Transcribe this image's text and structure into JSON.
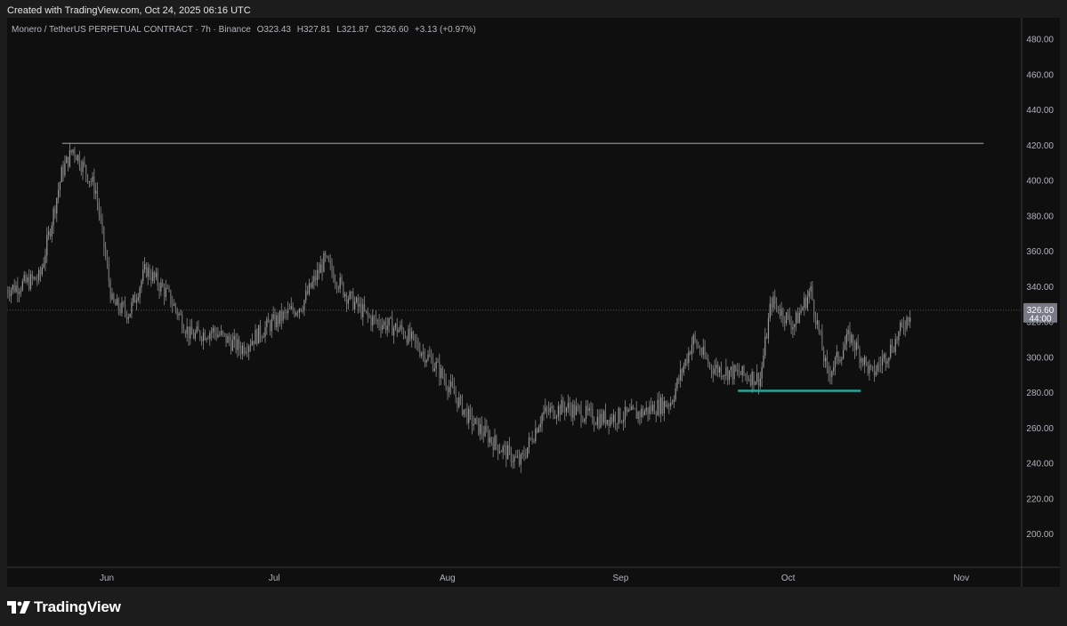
{
  "header": {
    "created_text": "Created with TradingView.com, Oct 24, 2025 06:16 UTC"
  },
  "legend": {
    "symbol": "Monero / TetherUS PERPETUAL CONTRACT · 7h · Binance",
    "open": "O323.43",
    "high": "H327.81",
    "low": "L321.87",
    "close": "C326.60",
    "change": "+3.13 (+0.97%)"
  },
  "price_label": {
    "price": "326.60",
    "countdown": "44:00"
  },
  "footer": {
    "brand": "TradingView"
  },
  "colors": {
    "candle": "#8c8c8c",
    "resistance_line": "#8a8a8a",
    "support_line": "#26a69a",
    "price_label_bg": "#787b86"
  },
  "chart_data": {
    "type": "candlestick",
    "title": "Monero / TetherUS PERPETUAL CONTRACT · 7h · Binance",
    "interval": "7h",
    "ylim": [
      180,
      490
    ],
    "y_ticks": [
      "200.00",
      "220.00",
      "240.00",
      "260.00",
      "280.00",
      "300.00",
      "320.00",
      "340.00",
      "360.00",
      "380.00",
      "400.00",
      "420.00",
      "440.00",
      "460.00",
      "480.00"
    ],
    "x_ticks": [
      "Jun",
      "Jul",
      "Aug",
      "Sep",
      "Oct",
      "Nov"
    ],
    "last_price": 326.6,
    "series": [
      {
        "name": "price",
        "dates": [
          "2025-05-14",
          "2025-05-20",
          "2025-05-24",
          "2025-05-26",
          "2025-05-30",
          "2025-06-02",
          "2025-06-05",
          "2025-06-08",
          "2025-06-12",
          "2025-06-16",
          "2025-06-20",
          "2025-06-25",
          "2025-06-30",
          "2025-07-06",
          "2025-07-10",
          "2025-07-14",
          "2025-07-18",
          "2025-07-24",
          "2025-07-30",
          "2025-08-05",
          "2025-08-10",
          "2025-08-14",
          "2025-08-18",
          "2025-08-22",
          "2025-08-28",
          "2025-09-04",
          "2025-09-10",
          "2025-09-14",
          "2025-09-17",
          "2025-09-20",
          "2025-09-26",
          "2025-09-28",
          "2025-10-02",
          "2025-10-05",
          "2025-10-08",
          "2025-10-10",
          "2025-10-12",
          "2025-10-16",
          "2025-10-20",
          "2025-10-23"
        ],
        "values": [
          338,
          345,
          405,
          418,
          395,
          330,
          325,
          350,
          335,
          312,
          315,
          305,
          318,
          330,
          355,
          335,
          322,
          315,
          295,
          265,
          250,
          240,
          268,
          272,
          265,
          268,
          275,
          310,
          295,
          292,
          288,
          332,
          318,
          338,
          290,
          300,
          312,
          290,
          308,
          326.6
        ]
      }
    ],
    "annotations": [
      {
        "type": "horizontal_line",
        "label": "resistance",
        "value": 421,
        "from": "2025-05-24",
        "to": "2025-11-05"
      },
      {
        "type": "horizontal_line",
        "label": "support",
        "value": 281,
        "from": "2025-09-22",
        "to": "2025-10-14"
      }
    ]
  }
}
